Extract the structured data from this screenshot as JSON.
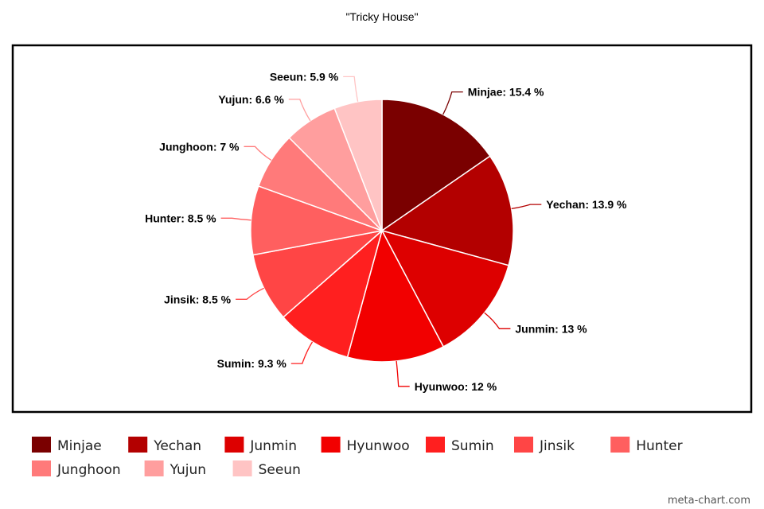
{
  "chart_data": {
    "type": "pie",
    "title": "\"Tricky House\"",
    "categories": [
      "Minjae",
      "Yechan",
      "Junmin",
      "Hyunwoo",
      "Sumin",
      "Jinsik",
      "Hunter",
      "Junghoon",
      "Yujun",
      "Seeun"
    ],
    "values": [
      15.4,
      13.9,
      13,
      12,
      9.3,
      8.5,
      8.5,
      7,
      6.6,
      5.9
    ],
    "labels": [
      "Minjae: 15.4 %",
      "Yechan: 13.9 %",
      "Junmin: 13 %",
      "Hyunwoo: 12 %",
      "Sumin: 9.3 %",
      "Jinsik: 8.5 %",
      "Hunter: 8.5 %",
      "Junghoon: 7 %",
      "Yujun: 6.6 %",
      "Seeun: 5.9 %"
    ],
    "colors": [
      "#7a0000",
      "#b30000",
      "#dd0000",
      "#f20000",
      "#ff1f1f",
      "#ff4545",
      "#ff5f5f",
      "#ff7a7a",
      "#ff9e9e",
      "#ffc4c4"
    ],
    "legend_position": "bottom",
    "grid": false
  },
  "watermark": "meta-chart.com"
}
